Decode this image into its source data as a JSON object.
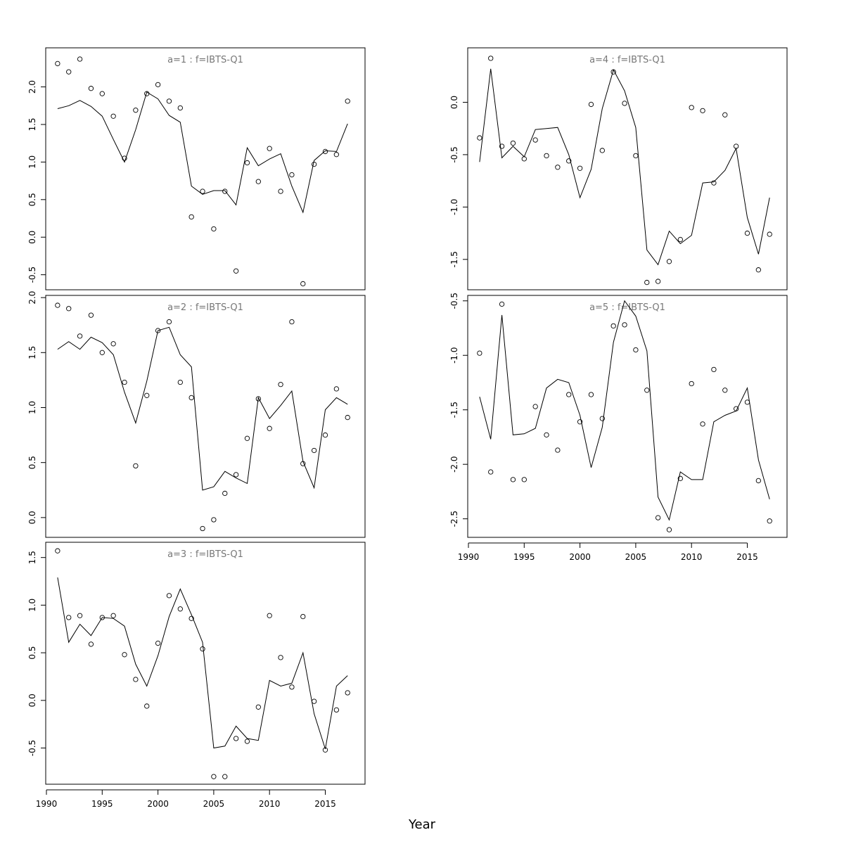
{
  "chart_data": {
    "type": "line",
    "xlabel": "Year",
    "x_ticks": [
      1990,
      1995,
      2000,
      2005,
      2010,
      2015
    ],
    "x": [
      1991,
      1992,
      1993,
      1994,
      1995,
      1996,
      1997,
      1998,
      1999,
      2000,
      2001,
      2002,
      2003,
      2004,
      2005,
      2006,
      2007,
      2008,
      2009,
      2010,
      2011,
      2012,
      2013,
      2014,
      2015,
      2016,
      2017
    ],
    "panels": [
      {
        "title": "a=1 : f=IBTS-Q1",
        "ylim": [
          -0.7,
          2.52
        ],
        "y_ticks": [
          -0.5,
          0.0,
          0.5,
          1.0,
          1.5,
          2.0
        ],
        "y_tick_labels": [
          "-0.5",
          "0.0",
          "0.5",
          "1.0",
          "1.5",
          "2.0"
        ],
        "observed": [
          2.31,
          2.2,
          2.37,
          1.98,
          1.91,
          1.61,
          1.05,
          1.69,
          1.91,
          2.03,
          1.81,
          1.72,
          0.27,
          0.61,
          0.11,
          0.61,
          -0.45,
          0.99,
          0.74,
          1.18,
          0.61,
          0.83,
          -0.62,
          0.97,
          1.14,
          1.1,
          1.81
        ],
        "fitted": [
          1.71,
          1.75,
          1.82,
          1.74,
          1.61,
          1.3,
          1.0,
          1.43,
          1.93,
          1.84,
          1.62,
          1.53,
          0.68,
          0.57,
          0.62,
          0.62,
          0.43,
          1.19,
          0.95,
          1.04,
          1.11,
          0.68,
          0.33,
          1.02,
          1.15,
          1.14,
          1.51
        ]
      },
      {
        "title": "a=2 : f=IBTS-Q1",
        "ylim": [
          -0.18,
          2.02
        ],
        "y_ticks": [
          0.0,
          0.5,
          1.0,
          1.5,
          2.0
        ],
        "y_tick_labels": [
          "0.0",
          "0.5",
          "1.0",
          "1.5",
          "2.0"
        ],
        "observed": [
          1.93,
          1.9,
          1.65,
          1.84,
          1.5,
          1.58,
          1.23,
          0.47,
          1.11,
          1.7,
          1.78,
          1.23,
          1.09,
          -0.1,
          -0.02,
          0.22,
          0.39,
          0.72,
          1.08,
          0.81,
          1.21,
          1.78,
          0.49,
          0.61,
          0.75,
          1.17,
          0.91
        ],
        "fitted": [
          1.53,
          1.6,
          1.53,
          1.64,
          1.59,
          1.48,
          1.14,
          0.86,
          1.24,
          1.7,
          1.73,
          1.48,
          1.37,
          0.25,
          0.28,
          0.42,
          0.36,
          0.31,
          1.09,
          0.9,
          1.02,
          1.15,
          0.51,
          0.27,
          0.98,
          1.09,
          1.03
        ]
      },
      {
        "title": "a=3 : f=IBTS-Q1",
        "ylim": [
          -0.88,
          1.66
        ],
        "y_ticks": [
          -0.5,
          0.0,
          0.5,
          1.0,
          1.5
        ],
        "y_tick_labels": [
          "-0.5",
          "0.0",
          "0.5",
          "1.0",
          "1.5"
        ],
        "observed": [
          1.57,
          0.87,
          0.89,
          0.59,
          0.87,
          0.89,
          0.48,
          0.22,
          -0.06,
          0.6,
          1.1,
          0.96,
          0.86,
          0.54,
          -0.8,
          -0.8,
          -0.4,
          -0.43,
          -0.07,
          0.89,
          0.45,
          0.14,
          0.88,
          -0.01,
          -0.52,
          -0.1,
          0.08
        ],
        "fitted": [
          1.29,
          0.61,
          0.8,
          0.68,
          0.87,
          0.86,
          0.78,
          0.38,
          0.15,
          0.47,
          0.88,
          1.17,
          0.9,
          0.61,
          -0.5,
          -0.48,
          -0.27,
          -0.4,
          -0.42,
          0.21,
          0.15,
          0.18,
          0.5,
          -0.14,
          -0.51,
          0.15,
          0.26
        ]
      },
      {
        "title": "a=4 : f=IBTS-Q1",
        "ylim": [
          -1.79,
          0.52
        ],
        "y_ticks": [
          -1.5,
          -1.0,
          -0.5,
          0.0
        ],
        "y_tick_labels": [
          "-1.5",
          "-1.0",
          "-0.5",
          "0.0"
        ],
        "observed": [
          -0.34,
          0.42,
          -0.42,
          -0.39,
          -0.54,
          -0.36,
          -0.51,
          -0.62,
          -0.56,
          -0.63,
          -0.02,
          -0.46,
          0.29,
          -0.01,
          -0.51,
          -1.72,
          -1.71,
          -1.52,
          -1.31,
          -0.05,
          -0.08,
          -0.77,
          -0.12,
          -0.42,
          -1.25,
          -1.6,
          -1.26
        ],
        "fitted": [
          -0.57,
          0.32,
          -0.53,
          -0.42,
          -0.52,
          -0.26,
          -0.25,
          -0.24,
          -0.5,
          -0.91,
          -0.64,
          -0.06,
          0.31,
          0.11,
          -0.24,
          -1.41,
          -1.55,
          -1.23,
          -1.35,
          -1.27,
          -0.77,
          -0.76,
          -0.65,
          -0.44,
          -1.1,
          -1.45,
          -0.91
        ]
      },
      {
        "title": "a=5 : f=IBTS-Q1",
        "ylim": [
          -2.67,
          -0.45
        ],
        "y_ticks": [
          -2.5,
          -2.0,
          -1.5,
          -1.0,
          -0.5
        ],
        "y_tick_labels": [
          "-2.5",
          "-2.0",
          "-1.5",
          "-1.0",
          "-0.5"
        ],
        "observed": [
          -0.98,
          -2.07,
          -0.53,
          -2.14,
          -2.14,
          -1.47,
          -1.73,
          -1.87,
          -1.36,
          -1.61,
          -1.36,
          -1.58,
          -0.73,
          -0.72,
          -0.95,
          -1.32,
          -2.49,
          -2.6,
          -2.13,
          -1.26,
          -1.63,
          -1.13,
          -1.32,
          -1.49,
          -1.43,
          -2.15,
          -2.52
        ],
        "fitted": [
          -1.38,
          -1.77,
          -0.63,
          -1.73,
          -1.72,
          -1.67,
          -1.3,
          -1.22,
          -1.25,
          -1.55,
          -2.03,
          -1.66,
          -0.88,
          -0.5,
          -0.64,
          -0.96,
          -2.3,
          -2.51,
          -2.07,
          -2.14,
          -2.14,
          -1.61,
          -1.55,
          -1.51,
          -1.3,
          -1.96,
          -2.32
        ]
      }
    ]
  }
}
